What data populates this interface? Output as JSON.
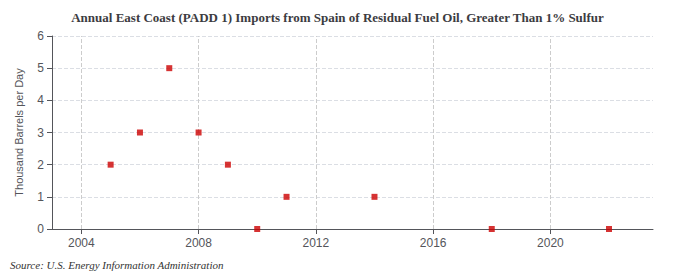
{
  "chart_data": {
    "type": "scatter",
    "title": "Annual East Coast (PADD 1) Imports from Spain of Residual Fuel Oil, Greater Than 1% Sulfur",
    "ylabel": "Thousand Barrels per Day",
    "annotation": "Source: U.S. Energy Information Administration",
    "x": [
      2005,
      2006,
      2007,
      2008,
      2009,
      2010,
      2011,
      2014,
      2018,
      2022
    ],
    "values": [
      2,
      3,
      5,
      3,
      2,
      0,
      1,
      1,
      0,
      0
    ],
    "xlim": [
      2003.0,
      2023.5
    ],
    "ylim": [
      0,
      6
    ],
    "xticks": [
      2004,
      2008,
      2012,
      2016,
      2020
    ],
    "yticks": [
      0,
      1,
      2,
      3,
      4,
      5,
      6
    ],
    "grid": true,
    "color": "#cc0000",
    "marker": "square"
  }
}
